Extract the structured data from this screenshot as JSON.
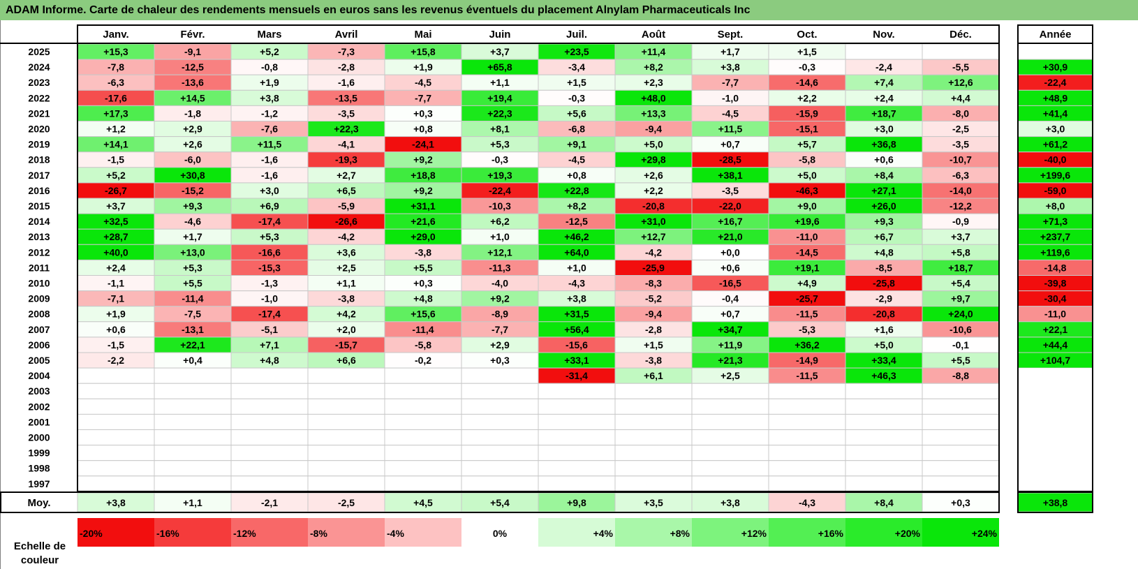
{
  "title": "ADAM Informe. Carte de chaleur des rendements mensuels en euros sans les revenus éventuels du placement Alnylam Pharmaceuticals Inc",
  "chart_data": {
    "type": "heatmap",
    "title": "ADAM Informe. Carte de chaleur des rendements mensuels en euros sans les revenus éventuels du placement Alnylam Pharmaceuticals Inc",
    "columns": [
      "Janv.",
      "Févr.",
      "Mars",
      "Avril",
      "Mai",
      "Juin",
      "Juil.",
      "Août",
      "Sept.",
      "Oct.",
      "Nov.",
      "Déc."
    ],
    "year_column_label": "Année",
    "rows": [
      {
        "year": "2025",
        "values": [
          "+15,3",
          "-9,1",
          "+5,2",
          "-7,3",
          "+15,8",
          "+3,7",
          "+23,5",
          "+11,4",
          "+1,7",
          "+1,5",
          "",
          ""
        ],
        "annual": ""
      },
      {
        "year": "2024",
        "values": [
          "-7,8",
          "-12,5",
          "-0,8",
          "-2,8",
          "+1,9",
          "+65,8",
          "-3,4",
          "+8,2",
          "+3,8",
          "-0,3",
          "-2,4",
          "-5,5"
        ],
        "annual": "+30,9"
      },
      {
        "year": "2023",
        "values": [
          "-6,3",
          "-13,6",
          "+1,9",
          "-1,6",
          "-4,5",
          "+1,1",
          "+1,5",
          "+2,3",
          "-7,7",
          "-14,6",
          "+7,4",
          "+12,6"
        ],
        "annual": "-22,4"
      },
      {
        "year": "2022",
        "values": [
          "-17,6",
          "+14,5",
          "+3,8",
          "-13,5",
          "-7,7",
          "+19,4",
          "-0,3",
          "+48,0",
          "-1,0",
          "+2,2",
          "+2,4",
          "+4,4"
        ],
        "annual": "+48,9"
      },
      {
        "year": "2021",
        "values": [
          "+17,3",
          "-1,8",
          "-1,2",
          "-3,5",
          "+0,3",
          "+22,3",
          "+5,6",
          "+13,3",
          "-4,5",
          "-15,9",
          "+18,7",
          "-8,0"
        ],
        "annual": "+41,4"
      },
      {
        "year": "2020",
        "values": [
          "+1,2",
          "+2,9",
          "-7,6",
          "+22,3",
          "+0,8",
          "+8,1",
          "-6,8",
          "-9,4",
          "+11,5",
          "-15,1",
          "+3,0",
          "-2,5"
        ],
        "annual": "+3,0"
      },
      {
        "year": "2019",
        "values": [
          "+14,1",
          "+2,6",
          "+11,5",
          "-4,1",
          "-24,1",
          "+5,3",
          "+9,1",
          "+5,0",
          "+0,7",
          "+5,7",
          "+36,8",
          "-3,5"
        ],
        "annual": "+61,2"
      },
      {
        "year": "2018",
        "values": [
          "-1,5",
          "-6,0",
          "-1,6",
          "-19,3",
          "+9,2",
          "-0,3",
          "-4,5",
          "+29,8",
          "-28,5",
          "-5,8",
          "+0,6",
          "-10,7"
        ],
        "annual": "-40,0"
      },
      {
        "year": "2017",
        "values": [
          "+5,2",
          "+30,8",
          "-1,6",
          "+2,7",
          "+18,8",
          "+19,3",
          "+0,8",
          "+2,6",
          "+38,1",
          "+5,0",
          "+8,4",
          "-6,3"
        ],
        "annual": "+199,6"
      },
      {
        "year": "2016",
        "values": [
          "-26,7",
          "-15,2",
          "+3,0",
          "+6,5",
          "+9,2",
          "-22,4",
          "+22,8",
          "+2,2",
          "-3,5",
          "-46,3",
          "+27,1",
          "-14,0"
        ],
        "annual": "-59,0"
      },
      {
        "year": "2015",
        "values": [
          "+3,7",
          "+9,3",
          "+6,9",
          "-5,9",
          "+31,1",
          "-10,3",
          "+8,2",
          "-20,8",
          "-22,0",
          "+9,0",
          "+26,0",
          "-12,2"
        ],
        "annual": "+8,0"
      },
      {
        "year": "2014",
        "values": [
          "+32,5",
          "-4,6",
          "-17,4",
          "-26,6",
          "+21,6",
          "+6,2",
          "-12,5",
          "+31,0",
          "+16,7",
          "+19,6",
          "+9,3",
          "-0,9"
        ],
        "annual": "+71,3"
      },
      {
        "year": "2013",
        "values": [
          "+28,7",
          "+1,7",
          "+5,3",
          "-4,2",
          "+29,0",
          "+1,0",
          "+46,2",
          "+12,7",
          "+21,0",
          "-11,0",
          "+6,7",
          "+3,7"
        ],
        "annual": "+237,7"
      },
      {
        "year": "2012",
        "values": [
          "+40,0",
          "+13,0",
          "-16,6",
          "+3,6",
          "-3,8",
          "+12,1",
          "+64,0",
          "-4,2",
          "+0,0",
          "-14,5",
          "+4,8",
          "+5,8"
        ],
        "annual": "+119,6"
      },
      {
        "year": "2011",
        "values": [
          "+2,4",
          "+5,3",
          "-15,3",
          "+2,5",
          "+5,5",
          "-11,3",
          "+1,0",
          "-25,9",
          "+0,6",
          "+19,1",
          "-8,5",
          "+18,7"
        ],
        "annual": "-14,8"
      },
      {
        "year": "2010",
        "values": [
          "-1,1",
          "+5,5",
          "-1,3",
          "+1,1",
          "+0,3",
          "-4,0",
          "-4,3",
          "-8,3",
          "-16,5",
          "+4,9",
          "-25,8",
          "+5,4"
        ],
        "annual": "-39,8"
      },
      {
        "year": "2009",
        "values": [
          "-7,1",
          "-11,4",
          "-1,0",
          "-3,8",
          "+4,8",
          "+9,2",
          "+3,8",
          "-5,2",
          "-0,4",
          "-25,7",
          "-2,9",
          "+9,7"
        ],
        "annual": "-30,4"
      },
      {
        "year": "2008",
        "values": [
          "+1,9",
          "-7,5",
          "-17,4",
          "+4,2",
          "+15,6",
          "-8,9",
          "+31,5",
          "-9,4",
          "+0,7",
          "-11,5",
          "-20,8",
          "+24,0"
        ],
        "annual": "-11,0"
      },
      {
        "year": "2007",
        "values": [
          "+0,6",
          "-13,1",
          "-5,1",
          "+2,0",
          "-11,4",
          "-7,7",
          "+56,4",
          "-2,8",
          "+34,7",
          "-5,3",
          "+1,6",
          "-10,6"
        ],
        "annual": "+22,1"
      },
      {
        "year": "2006",
        "values": [
          "-1,5",
          "+22,1",
          "+7,1",
          "-15,7",
          "-5,8",
          "+2,9",
          "-15,6",
          "+1,5",
          "+11,9",
          "+36,2",
          "+5,0",
          "-0,1"
        ],
        "annual": "+44,4"
      },
      {
        "year": "2005",
        "values": [
          "-2,2",
          "+0,4",
          "+4,8",
          "+6,6",
          "-0,2",
          "+0,3",
          "+33,1",
          "-3,8",
          "+21,3",
          "-14,9",
          "+33,4",
          "+5,5"
        ],
        "annual": "+104,7"
      },
      {
        "year": "2004",
        "values": [
          "",
          "",
          "",
          "",
          "",
          "",
          "-31,4",
          "+6,1",
          "+2,5",
          "-11,5",
          "+46,3",
          "-8,8"
        ],
        "annual": ""
      },
      {
        "year": "2003",
        "values": [
          "",
          "",
          "",
          "",
          "",
          "",
          "",
          "",
          "",
          "",
          "",
          ""
        ],
        "annual": ""
      },
      {
        "year": "2002",
        "values": [
          "",
          "",
          "",
          "",
          "",
          "",
          "",
          "",
          "",
          "",
          "",
          ""
        ],
        "annual": ""
      },
      {
        "year": "2001",
        "values": [
          "",
          "",
          "",
          "",
          "",
          "",
          "",
          "",
          "",
          "",
          "",
          ""
        ],
        "annual": ""
      },
      {
        "year": "2000",
        "values": [
          "",
          "",
          "",
          "",
          "",
          "",
          "",
          "",
          "",
          "",
          "",
          ""
        ],
        "annual": ""
      },
      {
        "year": "1999",
        "values": [
          "",
          "",
          "",
          "",
          "",
          "",
          "",
          "",
          "",
          "",
          "",
          ""
        ],
        "annual": ""
      },
      {
        "year": "1998",
        "values": [
          "",
          "",
          "",
          "",
          "",
          "",
          "",
          "",
          "",
          "",
          "",
          ""
        ],
        "annual": ""
      },
      {
        "year": "1997",
        "values": [
          "",
          "",
          "",
          "",
          "",
          "",
          "",
          "",
          "",
          "",
          "",
          ""
        ],
        "annual": ""
      }
    ],
    "average": {
      "label": "Moy.",
      "values": [
        "+3,8",
        "+1,1",
        "-2,1",
        "-2,5",
        "+4,5",
        "+5,4",
        "+9,8",
        "+3,5",
        "+3,8",
        "-4,3",
        "+8,4",
        "+0,3"
      ],
      "annual": "+38,8"
    },
    "color_scale": {
      "label": "Echelle de couleur",
      "steps": [
        {
          "label": "-20%",
          "value": -20,
          "color": "#F20E0E"
        },
        {
          "label": "-16%",
          "value": -16,
          "color": "#F53B3B"
        },
        {
          "label": "-12%",
          "value": -12,
          "color": "#F86868"
        },
        {
          "label": "-8%",
          "value": -8,
          "color": "#FA9494"
        },
        {
          "label": "-4%",
          "value": -4,
          "color": "#FDC2C2"
        },
        {
          "label": "0%",
          "value": 0,
          "color": "#FFFFFF"
        },
        {
          "label": "+4%",
          "value": 4,
          "color": "#D6FBD6"
        },
        {
          "label": "+8%",
          "value": 8,
          "color": "#A9F7A9"
        },
        {
          "label": "+12%",
          "value": 12,
          "color": "#7DF37D"
        },
        {
          "label": "+16%",
          "value": 16,
          "color": "#53EF53"
        },
        {
          "label": "+20%",
          "value": 20,
          "color": "#2AEB2A"
        },
        {
          "label": "+24%",
          "value": 24,
          "color": "#0AE60A"
        }
      ]
    },
    "colors": {
      "negative_max": "#F20E0E",
      "neutral": "#FFFFFF",
      "positive_max": "#0AE60A",
      "title_bar": "#8BCB7F"
    }
  }
}
